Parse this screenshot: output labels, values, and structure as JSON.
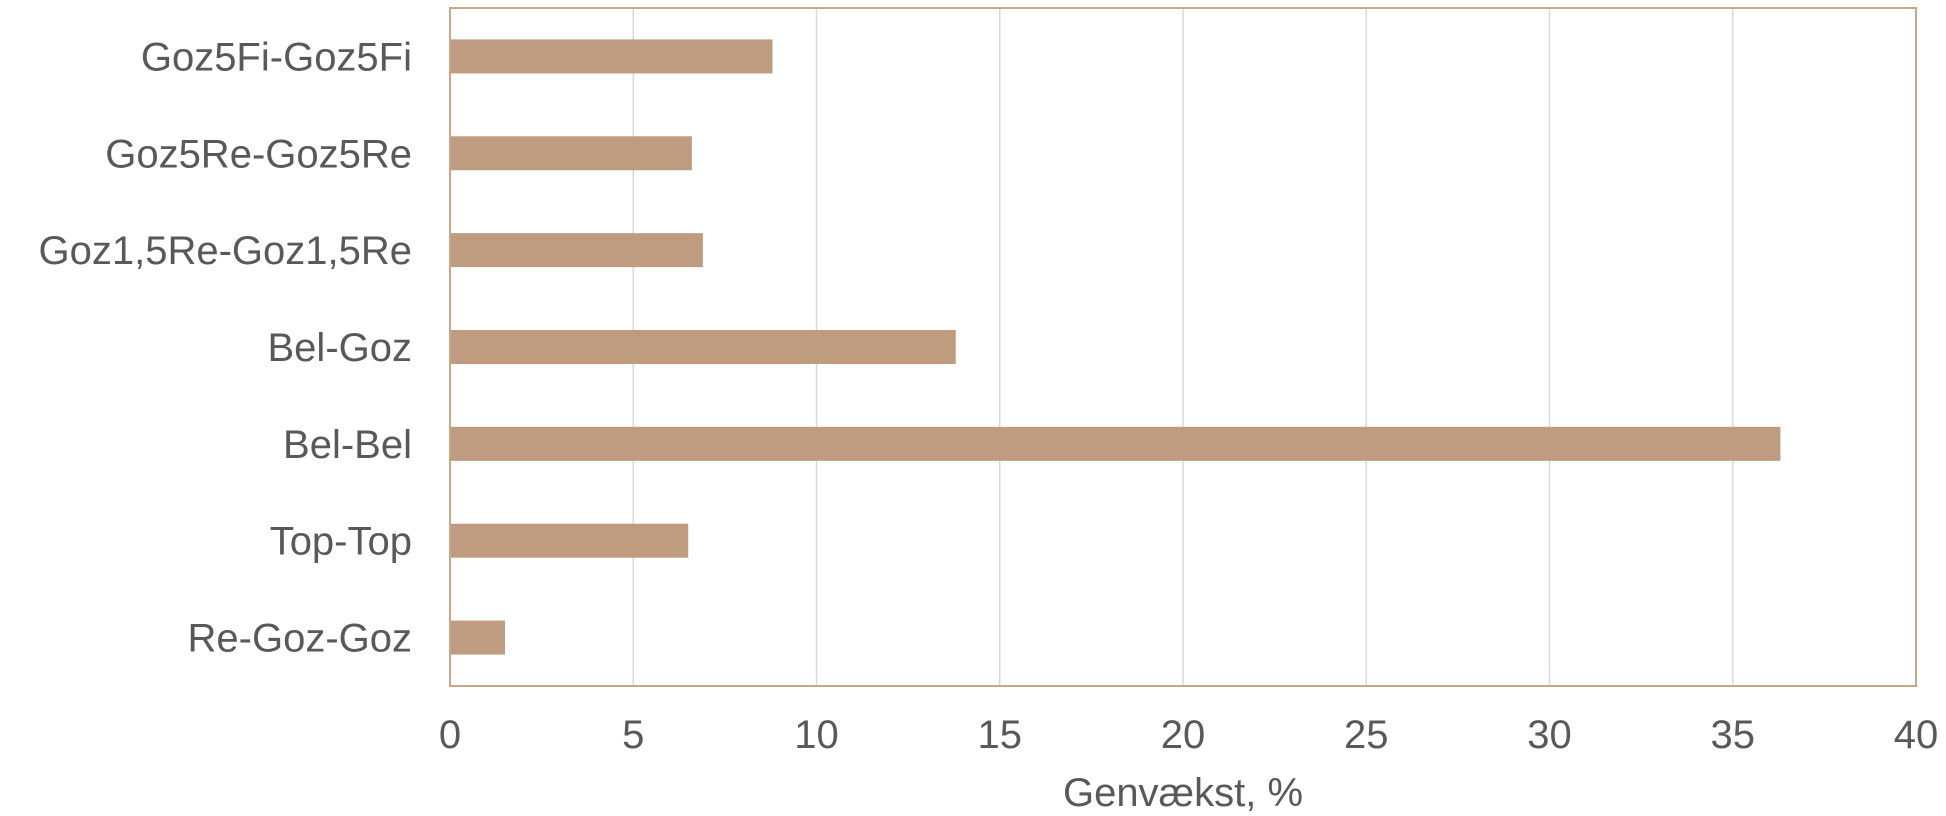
{
  "chart_data": {
    "type": "bar",
    "orientation": "horizontal",
    "categories": [
      "Goz5Fi-Goz5Fi",
      "Goz5Re-Goz5Re",
      "Goz1,5Re-Goz1,5Re",
      "Bel-Goz",
      "Bel-Bel",
      "Top-Top",
      "Re-Goz-Goz"
    ],
    "values": [
      8.8,
      6.6,
      6.9,
      13.8,
      36.3,
      6.5,
      1.5
    ],
    "xlabel": "Genvækst, %",
    "ylabel": "",
    "title": "",
    "xlim": [
      0,
      40
    ],
    "xticks": [
      "0",
      "5",
      "10",
      "15",
      "20",
      "25",
      "30",
      "35",
      "40"
    ],
    "grid": "vertical",
    "legend": "none",
    "colors": {
      "bar": "#bf9b7f",
      "frame": "#c8a888",
      "grid": "#d9d9d9",
      "text": "#595959"
    }
  }
}
